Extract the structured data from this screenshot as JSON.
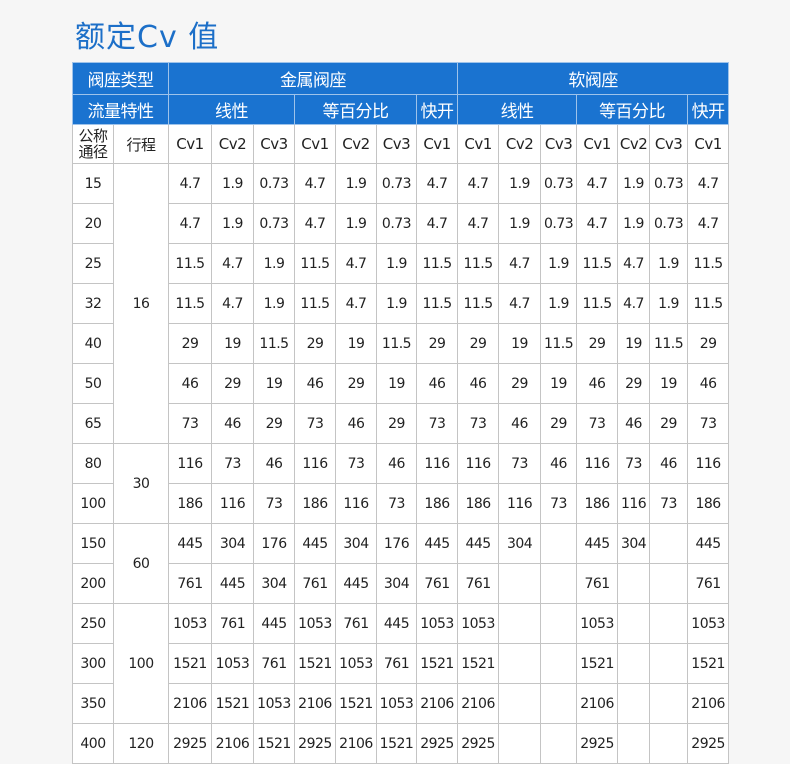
{
  "title": "额定Cv 值",
  "colors": {
    "header_bg": "#1a73d0",
    "title": "#1c6fc8"
  },
  "header": {
    "seat_type_label": "阀座类型",
    "metal_seat": "金属阀座",
    "soft_seat": "软阀座",
    "flow_char_label": "流量特性",
    "linear": "线性",
    "equal_pct": "等百分比",
    "quick_open": "快开",
    "dn_label": "公称通径",
    "travel_label": "行程",
    "cv_cols": [
      "Cv1",
      "Cv2",
      "Cv3",
      "Cv1",
      "Cv2",
      "Cv3",
      "Cv1",
      "Cv1",
      "Cv2",
      "Cv3",
      "Cv1",
      "Cv2",
      "Cv3",
      "Cv1"
    ]
  },
  "groups": [
    {
      "travel": "16",
      "rows": [
        {
          "dn": "15",
          "values": [
            "4.7",
            "1.9",
            "0.73",
            "4.7",
            "1.9",
            "0.73",
            "4.7",
            "4.7",
            "1.9",
            "0.73",
            "4.7",
            "1.9",
            "0.73",
            "4.7"
          ]
        },
        {
          "dn": "20",
          "values": [
            "4.7",
            "1.9",
            "0.73",
            "4.7",
            "1.9",
            "0.73",
            "4.7",
            "4.7",
            "1.9",
            "0.73",
            "4.7",
            "1.9",
            "0.73",
            "4.7"
          ]
        },
        {
          "dn": "25",
          "values": [
            "11.5",
            "4.7",
            "1.9",
            "11.5",
            "4.7",
            "1.9",
            "11.5",
            "11.5",
            "4.7",
            "1.9",
            "11.5",
            "4.7",
            "1.9",
            "11.5"
          ]
        },
        {
          "dn": "32",
          "values": [
            "11.5",
            "4.7",
            "1.9",
            "11.5",
            "4.7",
            "1.9",
            "11.5",
            "11.5",
            "4.7",
            "1.9",
            "11.5",
            "4.7",
            "1.9",
            "11.5"
          ]
        },
        {
          "dn": "40",
          "values": [
            "29",
            "19",
            "11.5",
            "29",
            "19",
            "11.5",
            "29",
            "29",
            "19",
            "11.5",
            "29",
            "19",
            "11.5",
            "29"
          ]
        },
        {
          "dn": "50",
          "values": [
            "46",
            "29",
            "19",
            "46",
            "29",
            "19",
            "46",
            "46",
            "29",
            "19",
            "46",
            "29",
            "19",
            "46"
          ]
        },
        {
          "dn": "65",
          "values": [
            "73",
            "46",
            "29",
            "73",
            "46",
            "29",
            "73",
            "73",
            "46",
            "29",
            "73",
            "46",
            "29",
            "73"
          ]
        }
      ]
    },
    {
      "travel": "30",
      "rows": [
        {
          "dn": "80",
          "values": [
            "116",
            "73",
            "46",
            "116",
            "73",
            "46",
            "116",
            "116",
            "73",
            "46",
            "116",
            "73",
            "46",
            "116"
          ]
        },
        {
          "dn": "100",
          "values": [
            "186",
            "116",
            "73",
            "186",
            "116",
            "73",
            "186",
            "186",
            "116",
            "73",
            "186",
            "116",
            "73",
            "186"
          ]
        }
      ]
    },
    {
      "travel": "60",
      "rows": [
        {
          "dn": "150",
          "values": [
            "445",
            "304",
            "176",
            "445",
            "304",
            "176",
            "445",
            "445",
            "304",
            "",
            "445",
            "304",
            "",
            "445"
          ]
        },
        {
          "dn": "200",
          "values": [
            "761",
            "445",
            "304",
            "761",
            "445",
            "304",
            "761",
            "761",
            "",
            "",
            "761",
            "",
            "",
            "761"
          ]
        }
      ]
    },
    {
      "travel": "100",
      "rows": [
        {
          "dn": "250",
          "values": [
            "1053",
            "761",
            "445",
            "1053",
            "761",
            "445",
            "1053",
            "1053",
            "",
            "",
            "1053",
            "",
            "",
            "1053"
          ]
        },
        {
          "dn": "300",
          "values": [
            "1521",
            "1053",
            "761",
            "1521",
            "1053",
            "761",
            "1521",
            "1521",
            "",
            "",
            "1521",
            "",
            "",
            "1521"
          ]
        },
        {
          "dn": "350",
          "values": [
            "2106",
            "1521",
            "1053",
            "2106",
            "1521",
            "1053",
            "2106",
            "2106",
            "",
            "",
            "2106",
            "",
            "",
            "2106"
          ]
        }
      ]
    },
    {
      "travel": "120",
      "rows": [
        {
          "dn": "400",
          "values": [
            "2925",
            "2106",
            "1521",
            "2925",
            "2106",
            "1521",
            "2925",
            "2925",
            "",
            "",
            "2925",
            "",
            "",
            "2925"
          ]
        }
      ]
    }
  ]
}
